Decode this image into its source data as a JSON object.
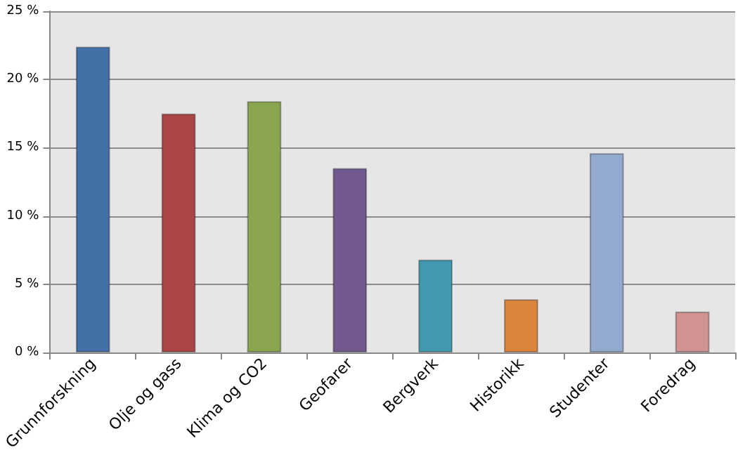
{
  "chart_data": {
    "type": "bar",
    "categories": [
      "Grunnforskning",
      "Olje og gass",
      "Klima og CO2",
      "Geofarer",
      "Bergverk",
      "Historikk",
      "Studenter",
      "Foredrag"
    ],
    "values": [
      22.4,
      17.5,
      18.4,
      13.5,
      6.8,
      3.9,
      14.6,
      3.0
    ],
    "colors": [
      "#4470a8",
      "#aa4644",
      "#89a54e",
      "#71588f",
      "#4198af",
      "#db843d",
      "#93a9cf",
      "#d19392"
    ],
    "ylim": [
      0,
      25
    ],
    "yticks": [
      {
        "value": 0,
        "label": "0 %"
      },
      {
        "value": 5,
        "label": "5 %"
      },
      {
        "value": 10,
        "label": "10 %"
      },
      {
        "value": 15,
        "label": "15 %"
      },
      {
        "value": 20,
        "label": "20 %"
      },
      {
        "value": 25,
        "label": "25 %"
      }
    ],
    "grid": "y"
  }
}
